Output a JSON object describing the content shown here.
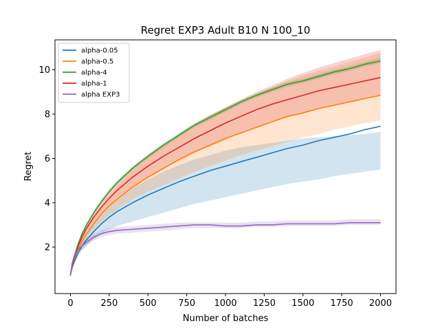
{
  "chart_data": {
    "type": "line",
    "title": "Regret EXP3 Adult B10 N 100_10",
    "xlabel": "Number of batches",
    "ylabel": "Regret",
    "xlim": [
      -100,
      2100
    ],
    "ylim": [
      -0.1,
      11.35
    ],
    "xticks": [
      0,
      250,
      500,
      750,
      1000,
      1250,
      1500,
      1750,
      2000
    ],
    "yticks": [
      2,
      4,
      6,
      8,
      10
    ],
    "legend_position": "upper-left",
    "grid": false,
    "x": [
      0,
      10,
      25,
      50,
      75,
      100,
      150,
      200,
      250,
      300,
      400,
      500,
      600,
      700,
      800,
      900,
      1000,
      1100,
      1200,
      1300,
      1400,
      1500,
      1600,
      1700,
      1800,
      1900,
      2000
    ],
    "series": [
      {
        "name": "alpha-0.05",
        "color": "#1f77b4",
        "values": [
          0.75,
          1.05,
          1.35,
          1.75,
          2.05,
          2.3,
          2.7,
          3.05,
          3.35,
          3.6,
          4.0,
          4.35,
          4.65,
          4.95,
          5.2,
          5.45,
          5.65,
          5.85,
          6.05,
          6.25,
          6.45,
          6.6,
          6.8,
          6.95,
          7.1,
          7.3,
          7.45
        ],
        "lower": [
          0.65,
          0.95,
          1.25,
          1.6,
          1.85,
          2.05,
          2.35,
          2.6,
          2.8,
          2.95,
          3.15,
          3.35,
          3.55,
          3.75,
          3.95,
          4.1,
          4.25,
          4.4,
          4.55,
          4.7,
          4.85,
          4.95,
          5.05,
          5.2,
          5.3,
          5.4,
          5.5
        ],
        "upper": [
          0.85,
          1.15,
          1.45,
          1.9,
          2.25,
          2.55,
          3.05,
          3.45,
          3.8,
          4.1,
          4.65,
          5.05,
          5.4,
          5.7,
          5.95,
          6.15,
          6.35,
          6.5,
          6.6,
          6.7,
          6.8,
          6.9,
          6.95,
          7.0,
          7.05,
          7.1,
          7.2
        ]
      },
      {
        "name": "alpha-0.5",
        "color": "#ff7f0e",
        "values": [
          0.75,
          1.1,
          1.45,
          1.9,
          2.25,
          2.55,
          3.05,
          3.5,
          3.85,
          4.15,
          4.7,
          5.15,
          5.55,
          5.95,
          6.3,
          6.6,
          6.9,
          7.15,
          7.4,
          7.65,
          7.9,
          8.05,
          8.25,
          8.4,
          8.55,
          8.7,
          8.85
        ],
        "lower": [
          0.7,
          1.0,
          1.35,
          1.75,
          2.05,
          2.35,
          2.8,
          3.15,
          3.45,
          3.7,
          4.15,
          4.5,
          4.8,
          5.1,
          5.4,
          5.65,
          5.9,
          6.15,
          6.35,
          6.55,
          6.75,
          6.95,
          7.1,
          7.3,
          7.45,
          7.6,
          7.7
        ],
        "upper": [
          0.85,
          1.2,
          1.6,
          2.1,
          2.5,
          2.85,
          3.4,
          3.9,
          4.35,
          4.75,
          5.45,
          6.05,
          6.6,
          7.1,
          7.55,
          7.95,
          8.3,
          8.6,
          8.9,
          9.2,
          9.5,
          9.75,
          9.95,
          10.15,
          10.35,
          10.55,
          10.75
        ]
      },
      {
        "name": "alpha-4",
        "color": "#2ca02c",
        "values": [
          0.75,
          1.2,
          1.6,
          2.15,
          2.6,
          2.95,
          3.55,
          4.05,
          4.5,
          4.9,
          5.55,
          6.1,
          6.6,
          7.05,
          7.5,
          7.85,
          8.2,
          8.55,
          8.85,
          9.1,
          9.35,
          9.5,
          9.7,
          9.9,
          10.05,
          10.25,
          10.4
        ],
        "lower": [
          0.7,
          1.15,
          1.55,
          2.05,
          2.5,
          2.85,
          3.45,
          3.95,
          4.4,
          4.8,
          5.45,
          6.0,
          6.5,
          6.95,
          7.4,
          7.75,
          8.1,
          8.45,
          8.75,
          9.0,
          9.25,
          9.4,
          9.6,
          9.8,
          9.95,
          10.15,
          10.3
        ],
        "upper": [
          0.8,
          1.25,
          1.65,
          2.25,
          2.7,
          3.05,
          3.65,
          4.15,
          4.6,
          5.0,
          5.65,
          6.2,
          6.7,
          7.15,
          7.6,
          7.95,
          8.3,
          8.65,
          8.95,
          9.2,
          9.45,
          9.6,
          9.8,
          10.0,
          10.15,
          10.35,
          10.55
        ]
      },
      {
        "name": "alpha-1",
        "color": "#d62728",
        "values": [
          0.75,
          1.15,
          1.5,
          2.05,
          2.45,
          2.8,
          3.35,
          3.8,
          4.2,
          4.55,
          5.15,
          5.65,
          6.1,
          6.5,
          6.9,
          7.25,
          7.6,
          7.9,
          8.2,
          8.45,
          8.65,
          8.85,
          9.05,
          9.2,
          9.35,
          9.5,
          9.65
        ],
        "lower": [
          0.7,
          1.05,
          1.4,
          1.9,
          2.3,
          2.6,
          3.1,
          3.5,
          3.85,
          4.15,
          4.7,
          5.15,
          5.55,
          5.9,
          6.25,
          6.55,
          6.85,
          7.15,
          7.4,
          7.65,
          7.85,
          8.05,
          8.25,
          8.4,
          8.55,
          8.7,
          8.85
        ],
        "upper": [
          0.85,
          1.25,
          1.65,
          2.2,
          2.65,
          3.0,
          3.6,
          4.1,
          4.55,
          4.95,
          5.6,
          6.15,
          6.65,
          7.1,
          7.55,
          7.95,
          8.3,
          8.65,
          9.0,
          9.3,
          9.6,
          9.85,
          10.1,
          10.3,
          10.5,
          10.7,
          10.9
        ]
      },
      {
        "name": "alpha EXP3",
        "color": "#9467bd",
        "values": [
          0.7,
          1.25,
          1.6,
          1.9,
          2.05,
          2.2,
          2.45,
          2.6,
          2.7,
          2.75,
          2.8,
          2.85,
          2.9,
          2.95,
          3.0,
          3.0,
          2.95,
          2.95,
          3.0,
          3.0,
          3.05,
          3.05,
          3.05,
          3.05,
          3.1,
          3.1,
          3.1
        ],
        "lower": [
          0.6,
          1.1,
          1.45,
          1.75,
          1.9,
          2.05,
          2.3,
          2.45,
          2.55,
          2.6,
          2.65,
          2.7,
          2.75,
          2.8,
          2.85,
          2.85,
          2.85,
          2.85,
          2.9,
          2.9,
          2.95,
          2.95,
          2.95,
          2.95,
          3.0,
          3.0,
          3.0
        ],
        "upper": [
          0.8,
          1.4,
          1.75,
          2.05,
          2.2,
          2.35,
          2.6,
          2.75,
          2.85,
          2.9,
          2.95,
          3.0,
          3.05,
          3.1,
          3.1,
          3.1,
          3.1,
          3.1,
          3.15,
          3.15,
          3.2,
          3.2,
          3.2,
          3.2,
          3.25,
          3.25,
          3.25
        ]
      }
    ]
  }
}
